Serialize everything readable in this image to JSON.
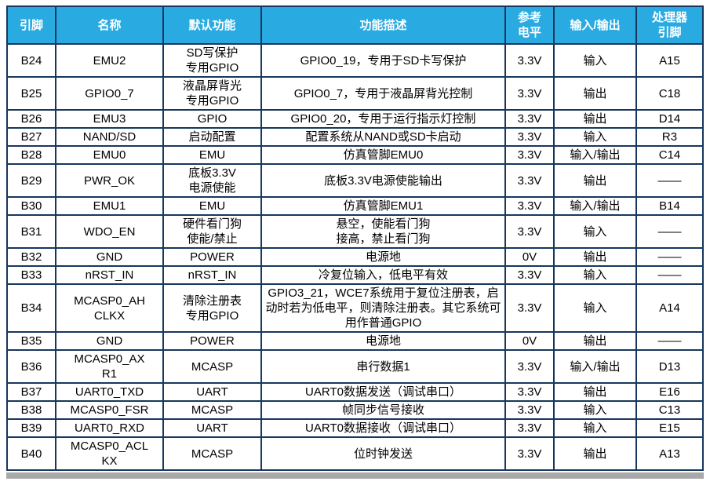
{
  "colors": {
    "header_bg": "#29ABE2",
    "border": "#17375E",
    "header_text": "#FFFFFF",
    "body_text": "#000000",
    "footer_bar": "#A9A9A9"
  },
  "table": {
    "columns": [
      {
        "key": "pin",
        "label": "引脚"
      },
      {
        "key": "name",
        "label": "名称"
      },
      {
        "key": "default_function",
        "label": "默认功能"
      },
      {
        "key": "description",
        "label": "功能描述"
      },
      {
        "key": "level",
        "label": "参考\n电平"
      },
      {
        "key": "io",
        "label": "输入/输出"
      },
      {
        "key": "proc_pin",
        "label": "处理器\n引脚"
      }
    ],
    "rows": [
      {
        "pin": "B24",
        "name": "EMU2",
        "default_function": "SD写保护\n专用GPIO",
        "description": "GPIO0_19，专用于SD卡写保护",
        "level": "3.3V",
        "io": "输入",
        "proc_pin": "A15"
      },
      {
        "pin": "B25",
        "name": "GPIO0_7",
        "default_function": "液晶屏背光\n专用GPIO",
        "description": "GPIO0_7，专用于液晶屏背光控制",
        "level": "3.3V",
        "io": "输出",
        "proc_pin": "C18"
      },
      {
        "pin": "B26",
        "name": "EMU3",
        "default_function": "GPIO",
        "description": "GPIO0_20，专用于运行指示灯控制",
        "level": "3.3V",
        "io": "输出",
        "proc_pin": "D14"
      },
      {
        "pin": "B27",
        "name": "NAND/SD",
        "default_function": "启动配置",
        "description": "配置系统从NAND或SD卡启动",
        "level": "3.3V",
        "io": "输入",
        "proc_pin": "R3"
      },
      {
        "pin": "B28",
        "name": "EMU0",
        "default_function": "EMU",
        "description": "仿真管脚EMU0",
        "level": "3.3V",
        "io": "输入/输出",
        "proc_pin": "C14"
      },
      {
        "pin": "B29",
        "name": "PWR_OK",
        "default_function": "底板3.3V\n电源使能",
        "description": "底板3.3V电源使能输出",
        "level": "3.3V",
        "io": "输出",
        "proc_pin": "——"
      },
      {
        "pin": "B30",
        "name": "EMU1",
        "default_function": "EMU",
        "description": "仿真管脚EMU1",
        "level": "3.3V",
        "io": "输入/输出",
        "proc_pin": "B14"
      },
      {
        "pin": "B31",
        "name": "WDO_EN",
        "default_function": "硬件看门狗\n使能/禁止",
        "description": "悬空，使能看门狗\n接高，禁止看门狗",
        "level": "3.3V",
        "io": "输入",
        "proc_pin": "——"
      },
      {
        "pin": "B32",
        "name": "GND",
        "default_function": "POWER",
        "description": "电源地",
        "level": "0V",
        "io": "输出",
        "proc_pin": "——"
      },
      {
        "pin": "B33",
        "name": "nRST_IN",
        "default_function": "nRST_IN",
        "description": "冷复位输入，低电平有效",
        "level": "3.3V",
        "io": "输入",
        "proc_pin": "——"
      },
      {
        "pin": "B34",
        "name": "MCASP0_AH\nCLKX",
        "default_function": "清除注册表\n专用GPIO",
        "description": "GPIO3_21，WCE7系统用于复位注册表，启动时若为低电平，则清除注册表。其它系统可用作普通GPIO",
        "level": "3.3V",
        "io": "输入",
        "proc_pin": "A14"
      },
      {
        "pin": "B35",
        "name": "GND",
        "default_function": "POWER",
        "description": "电源地",
        "level": "0V",
        "io": "输出",
        "proc_pin": "——"
      },
      {
        "pin": "B36",
        "name": "MCASP0_AX\nR1",
        "default_function": "MCASP",
        "description": "串行数据1",
        "level": "3.3V",
        "io": "输入/输出",
        "proc_pin": "D13"
      },
      {
        "pin": "B37",
        "name": "UART0_TXD",
        "default_function": "UART",
        "description": "UART0数据发送（调试串口）",
        "level": "3.3V",
        "io": "输出",
        "proc_pin": "E16"
      },
      {
        "pin": "B38",
        "name": "MCASP0_FSR",
        "default_function": "MCASP",
        "description": "帧同步信号接收",
        "level": "3.3V",
        "io": "输入",
        "proc_pin": "C13"
      },
      {
        "pin": "B39",
        "name": "UART0_RXD",
        "default_function": "UART",
        "description": "UART0数据接收（调试串口）",
        "level": "3.3V",
        "io": "输入",
        "proc_pin": "E15"
      },
      {
        "pin": "B40",
        "name": "MCASP0_ACL\nKX",
        "default_function": "MCASP",
        "description": "位时钟发送",
        "level": "3.3V",
        "io": "输出",
        "proc_pin": "A13"
      }
    ]
  }
}
